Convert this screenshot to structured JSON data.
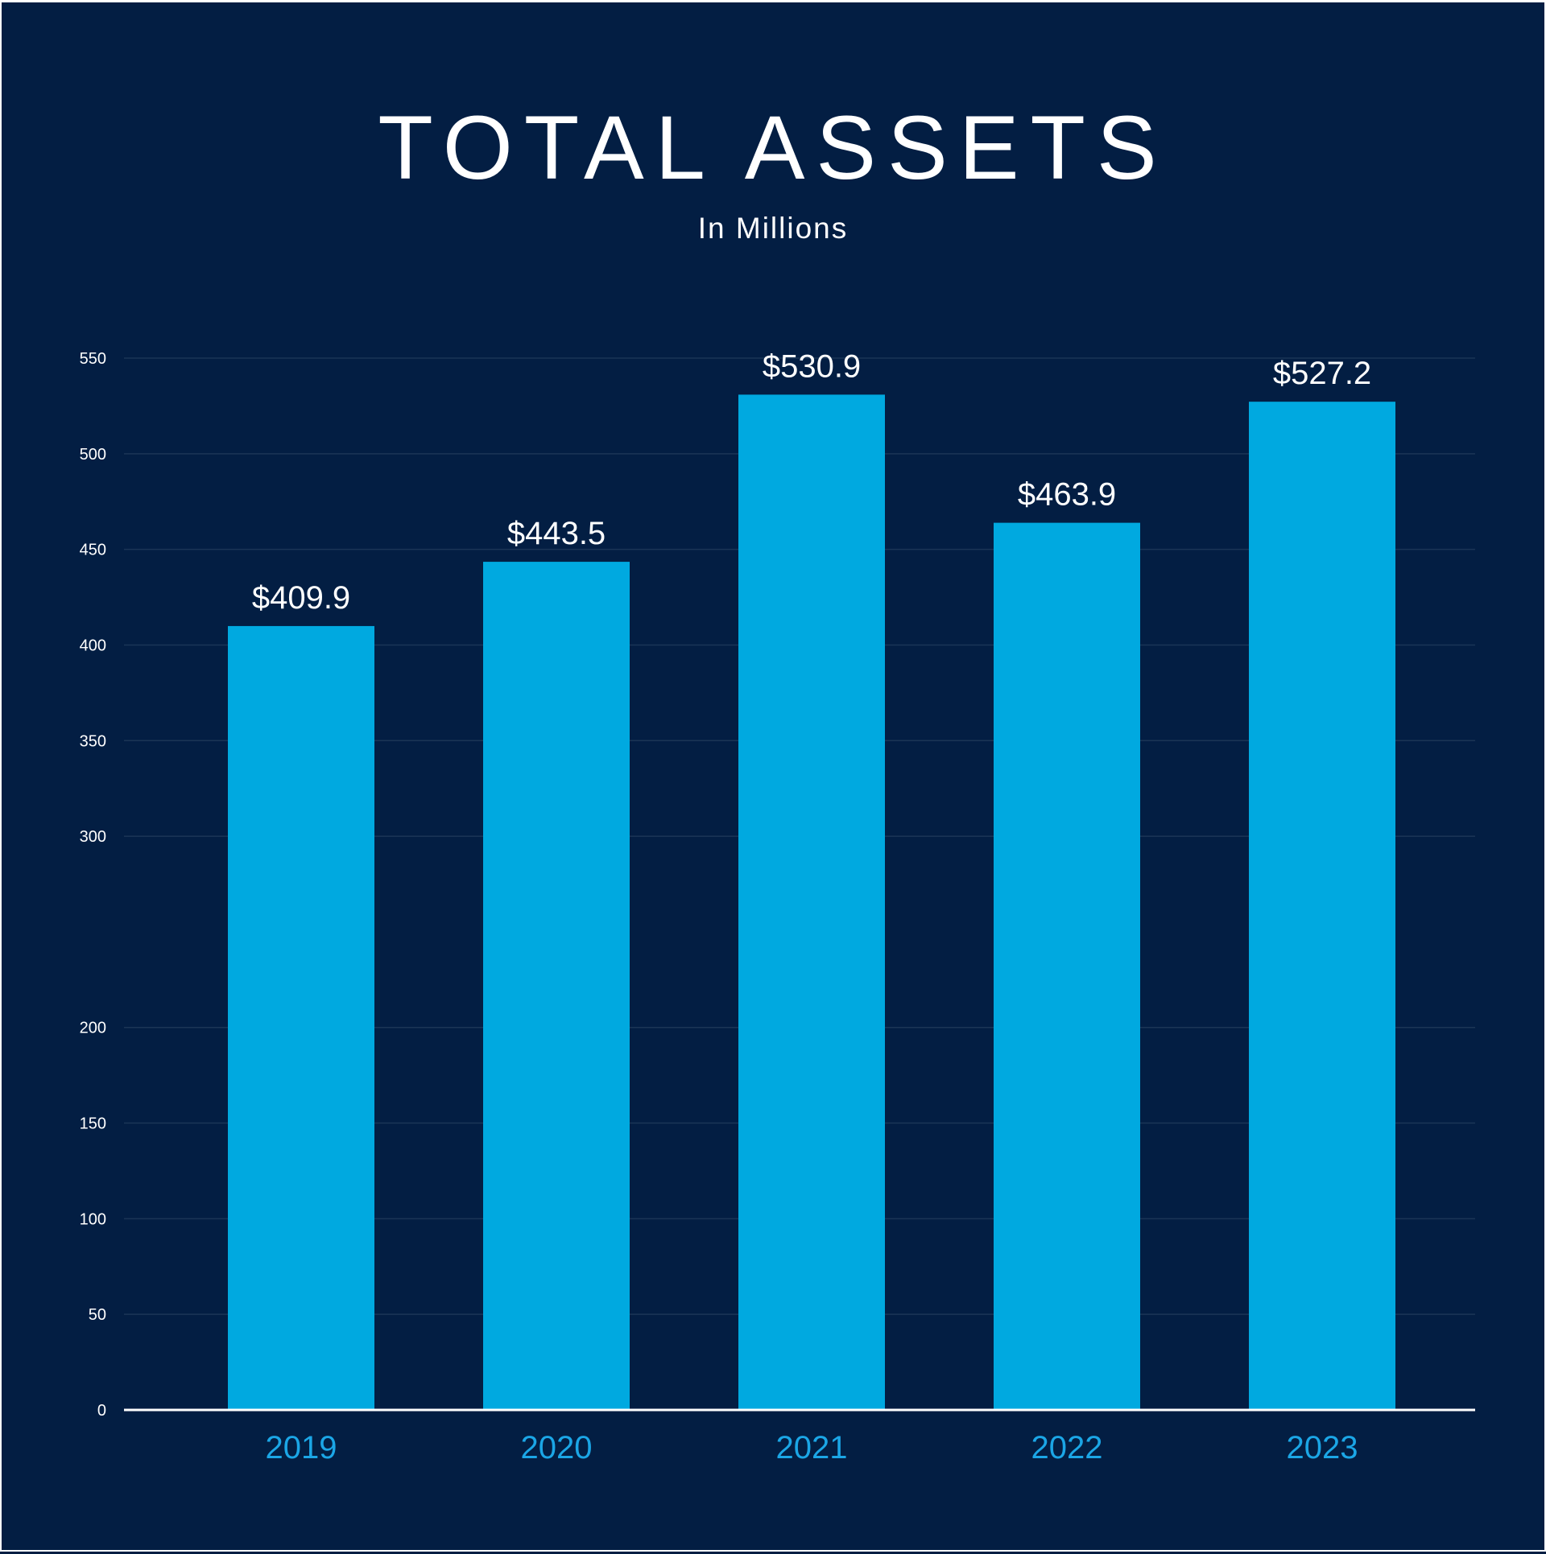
{
  "chart_data": {
    "type": "bar",
    "title": "TOTAL ASSETS",
    "subtitle": "In Millions",
    "categories": [
      "2019",
      "2020",
      "2021",
      "2022",
      "2023"
    ],
    "values": [
      409.9,
      443.5,
      530.9,
      463.9,
      527.2
    ],
    "value_labels": [
      "$409.9",
      "$443.5",
      "$530.9",
      "$463.9",
      "$527.2"
    ],
    "yticks": [
      0,
      50,
      100,
      150,
      200,
      300,
      350,
      400,
      450,
      500,
      550
    ],
    "ylim": [
      0,
      550
    ],
    "grid": true,
    "legend": "none"
  },
  "colors": {
    "background": "#031e43",
    "bar": "#00a9e0",
    "category_label": "#1ba6e6",
    "text": "#ffffff",
    "grid": "#1b3556",
    "axis": "#ffffff"
  }
}
